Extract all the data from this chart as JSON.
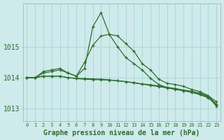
{
  "xlabel": "Graphe pression niveau de la mer (hPa)",
  "background_color": "#ceeaea",
  "grid_color": "#aad4d4",
  "line_color": "#2d6e2d",
  "marker_color": "#2d6e2d",
  "x": [
    0,
    1,
    2,
    3,
    4,
    5,
    6,
    7,
    8,
    9,
    10,
    11,
    12,
    13,
    14,
    15,
    16,
    17,
    18,
    19,
    20,
    21,
    22,
    23
  ],
  "ylim": [
    1012.6,
    1016.4
  ],
  "yticks": [
    1013,
    1014,
    1015
  ],
  "series": [
    [
      1014.0,
      1014.0,
      1014.2,
      1014.25,
      1014.3,
      1014.15,
      1014.05,
      1014.5,
      1015.05,
      1015.35,
      1015.4,
      1015.35,
      1015.1,
      1014.85,
      1014.45,
      1014.25,
      1013.95,
      1013.82,
      1013.78,
      1013.72,
      1013.62,
      1013.55,
      1013.42,
      1013.22
    ],
    [
      1014.0,
      1014.0,
      1014.15,
      1014.2,
      1014.25,
      1014.15,
      1014.05,
      1014.3,
      1015.65,
      1016.1,
      1015.4,
      1015.0,
      1014.65,
      1014.45,
      1014.25,
      1013.98,
      1013.78,
      1013.68,
      1013.62,
      1013.58,
      1013.53,
      1013.45,
      1013.35,
      1013.12
    ],
    [
      1014.0,
      1014.0,
      1014.05,
      1014.05,
      1014.05,
      1014.0,
      1013.98,
      1013.97,
      1013.96,
      1013.95,
      1013.93,
      1013.9,
      1013.87,
      1013.84,
      1013.8,
      1013.77,
      1013.73,
      1013.69,
      1013.65,
      1013.6,
      1013.56,
      1013.5,
      1013.4,
      1013.15
    ],
    [
      1014.0,
      1014.0,
      1014.05,
      1014.05,
      1014.05,
      1014.0,
      1013.97,
      1013.95,
      1013.94,
      1013.93,
      1013.92,
      1013.9,
      1013.87,
      1013.83,
      1013.79,
      1013.75,
      1013.71,
      1013.67,
      1013.63,
      1013.58,
      1013.53,
      1013.47,
      1013.37,
      1013.08
    ]
  ],
  "xtick_labels": [
    "0",
    "1",
    "2",
    "3",
    "4",
    "5",
    "6",
    "7",
    "8",
    "9",
    "10",
    "11",
    "12",
    "13",
    "14",
    "15",
    "16",
    "17",
    "18",
    "19",
    "20",
    "21",
    "22",
    "23"
  ],
  "fig_width": 3.2,
  "fig_height": 2.0,
  "dpi": 100,
  "xlabel_fontsize": 7,
  "ytick_fontsize": 7,
  "xtick_fontsize": 5.0,
  "linewidth": 0.9,
  "markersize": 3.5
}
